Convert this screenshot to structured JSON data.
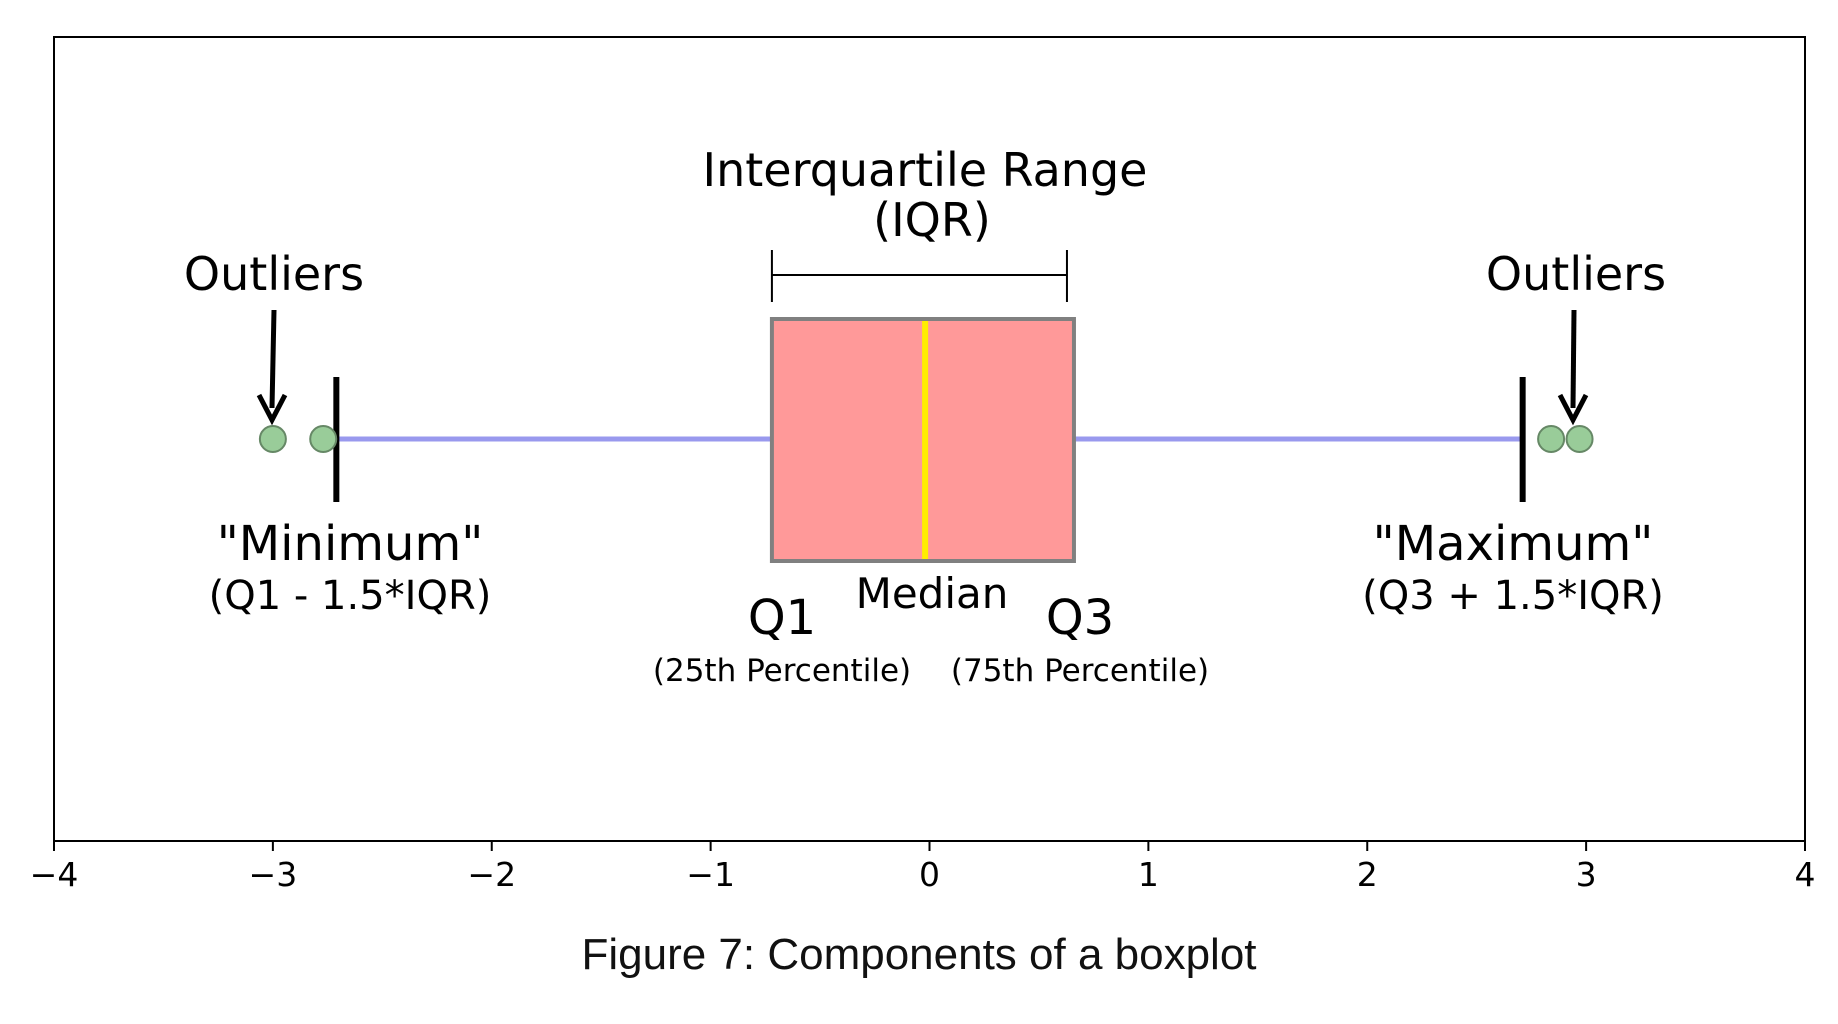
{
  "caption": "Figure 7: Components of a boxplot",
  "chart_data": {
    "type": "boxplot",
    "xlim": [
      -4,
      4
    ],
    "x_ticks": [
      -4,
      -3,
      -2,
      -1,
      0,
      1,
      2,
      3,
      4
    ],
    "x_tick_labels": [
      "−4",
      "−3",
      "−2",
      "−1",
      "0",
      "1",
      "2",
      "3",
      "4"
    ],
    "grid": false,
    "box": {
      "q1": -0.72,
      "median": -0.02,
      "q3": 0.66
    },
    "whiskers": {
      "min": -2.71,
      "max": 2.71
    },
    "outliers": [
      -3.0,
      -2.77,
      2.84,
      2.97
    ],
    "colors": {
      "box_fill": "#ff9999",
      "box_edge": "#808080",
      "median": "#ffee00",
      "whisker": "#9999ee",
      "outlier_fill": "#99cc99",
      "outlier_edge": "#668866",
      "cap": "#000000"
    },
    "annotations": {
      "iqr_line1": "Interquartile Range",
      "iqr_line2": "(IQR)",
      "outliers_left": "Outliers",
      "outliers_right": "Outliers",
      "minimum": "\"Minimum\"",
      "minimum_formula": "(Q1 - 1.5*IQR)",
      "maximum": "\"Maximum\"",
      "maximum_formula": "(Q3 + 1.5*IQR)",
      "q1": "Q1",
      "q1_desc": "(25th Percentile)",
      "median": "Median",
      "q3": "Q3",
      "q3_desc": "(75th Percentile)"
    }
  }
}
